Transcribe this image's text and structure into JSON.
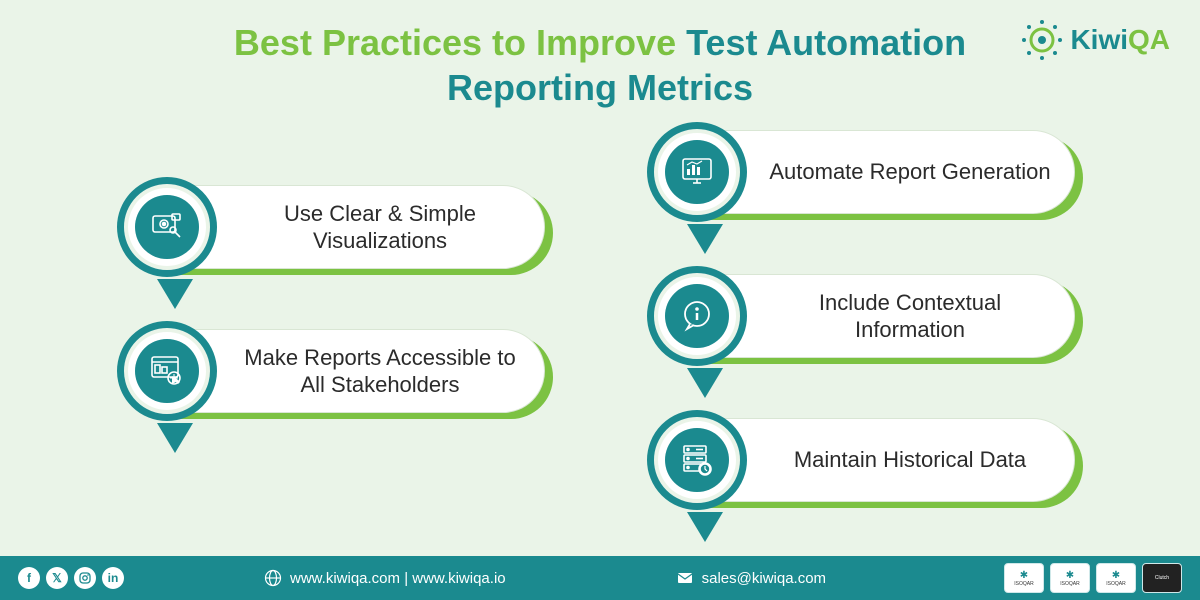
{
  "title": {
    "part1": "Best Practices to Improve",
    "part2": "Test Automation",
    "part3": "Reporting Metrics"
  },
  "logo": {
    "text1": "Kiwi",
    "text2": "QA"
  },
  "colors": {
    "teal": "#1b8a8f",
    "green": "#7cc242",
    "bg": "#eaf4e8",
    "white": "#ffffff",
    "text": "#2b2b2b"
  },
  "items": {
    "left": [
      {
        "label": "Use Clear & Simple Visualizations",
        "icon": "eye-search"
      },
      {
        "label": "Make Reports Accessible to All Stakeholders",
        "icon": "dashboard-touch"
      }
    ],
    "right": [
      {
        "label": "Automate Report Generation",
        "icon": "monitor-chart"
      },
      {
        "label": "Include Contextual Information",
        "icon": "info-bubble"
      },
      {
        "label": "Maintain Historical Data",
        "icon": "server-data"
      }
    ]
  },
  "footer": {
    "website": "www.kiwiqa.com | www.kiwiqa.io",
    "email": "sales@kiwiqa.com",
    "badges": [
      "ISOQAR",
      "ISOQAR",
      "ISOQAR",
      "Clutch"
    ]
  }
}
